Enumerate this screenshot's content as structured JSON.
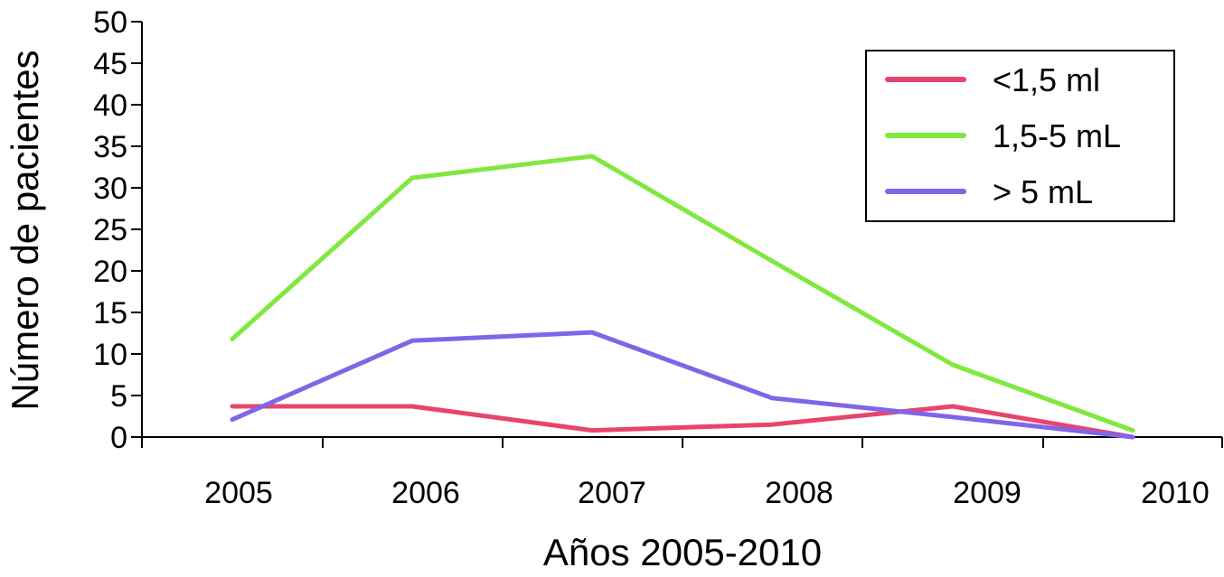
{
  "chart_data": {
    "type": "line",
    "title": "",
    "xlabel": "Años 2005-2010",
    "ylabel": "Número de pacientes",
    "categories": [
      "2005",
      "2006",
      "2007",
      "2008",
      "2009",
      "2010"
    ],
    "ylim": [
      0,
      50
    ],
    "yticks": [
      0,
      5,
      10,
      15,
      20,
      25,
      30,
      35,
      40,
      45,
      50
    ],
    "grid": false,
    "legend_position": "top-right",
    "series": [
      {
        "name": "<1,5 ml",
        "color": "#e8456e",
        "values": [
          3.7,
          3.7,
          0.8,
          1.5,
          3.7,
          0
        ]
      },
      {
        "name": "1,5-5 mL",
        "color": "#80e83f",
        "values": [
          11.8,
          31.2,
          33.8,
          21.2,
          8.7,
          0.8
        ]
      },
      {
        "name": "> 5 mL",
        "color": "#8065e8",
        "values": [
          2.1,
          11.6,
          12.6,
          4.7,
          2.4,
          0
        ]
      }
    ]
  }
}
